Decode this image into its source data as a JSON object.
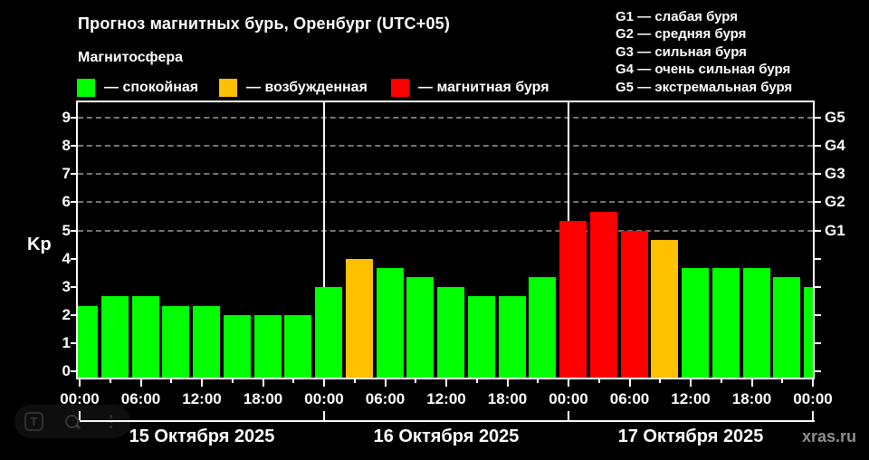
{
  "header": {
    "title": "Прогноз магнитных бурь, Оренбург (UTC+05)",
    "subtitle": "Магнитосфера"
  },
  "legend": {
    "items": [
      {
        "level": "quiet",
        "label": "— спокойная"
      },
      {
        "level": "unsettled",
        "label": "— возбужденная"
      },
      {
        "level": "storm",
        "label": "— магнитная буря"
      }
    ]
  },
  "storm_scale_legend": [
    "G1 — слабая буря",
    "G2 — средняя буря",
    "G3 — сильная буря",
    "G4 — очень сильная буря",
    "G5 — экстремальная буря"
  ],
  "footer": {
    "source": "xras.ru"
  },
  "overlay": {
    "translate_glyph": "T",
    "more_glyph": "⋮"
  },
  "chart_data": {
    "type": "bar",
    "title": "Прогноз магнитных бурь, Оренбург (UTC+05)",
    "ylabel": "Kp",
    "ylim": [
      0,
      9.6
    ],
    "yticks": [
      0,
      1,
      2,
      3,
      4,
      5,
      6,
      7,
      8,
      9
    ],
    "right_axis": [
      {
        "kp": 5,
        "label": "G1"
      },
      {
        "kp": 6,
        "label": "G2"
      },
      {
        "kp": 7,
        "label": "G3"
      },
      {
        "kp": 8,
        "label": "G4"
      },
      {
        "kp": 9,
        "label": "G5"
      }
    ],
    "grid_dashed_at": [
      5,
      6,
      7,
      8,
      9
    ],
    "slot_hours": [
      "00:00",
      "03:00",
      "06:00",
      "09:00",
      "12:00",
      "15:00",
      "18:00",
      "21:00"
    ],
    "x_major_labels": [
      "00:00",
      "06:00",
      "12:00",
      "18:00",
      "00:00",
      "06:00",
      "12:00",
      "18:00",
      "00:00",
      "06:00",
      "12:00",
      "18:00",
      "00:00"
    ],
    "days": [
      {
        "date": "15 Октября 2025",
        "values": [
          2.33,
          2.67,
          2.67,
          2.33,
          2.33,
          2.0,
          2.0,
          2.0
        ],
        "levels": [
          "quiet",
          "quiet",
          "quiet",
          "quiet",
          "quiet",
          "quiet",
          "quiet",
          "quiet"
        ]
      },
      {
        "date": "16 Октября 2025",
        "values": [
          3.0,
          4.0,
          3.67,
          3.33,
          3.0,
          2.67,
          2.67,
          3.33
        ],
        "levels": [
          "quiet",
          "unsettled",
          "quiet",
          "quiet",
          "quiet",
          "quiet",
          "quiet",
          "quiet"
        ]
      },
      {
        "date": "17 Октября 2025",
        "values": [
          5.33,
          5.67,
          5.0,
          4.67,
          3.67,
          3.67,
          3.67,
          3.33
        ],
        "levels": [
          "storm",
          "storm",
          "storm",
          "unsettled",
          "quiet",
          "quiet",
          "quiet",
          "quiet"
        ]
      }
    ],
    "trailing_bar": {
      "time": "00:00",
      "value": 3.0,
      "level": "quiet"
    },
    "level_colors": {
      "quiet": "#00ff00",
      "unsettled": "#ffc000",
      "storm": "#ff0000"
    },
    "legend_position": "top-left",
    "grid": "dashed horizontal at Kp 5-9 only"
  }
}
